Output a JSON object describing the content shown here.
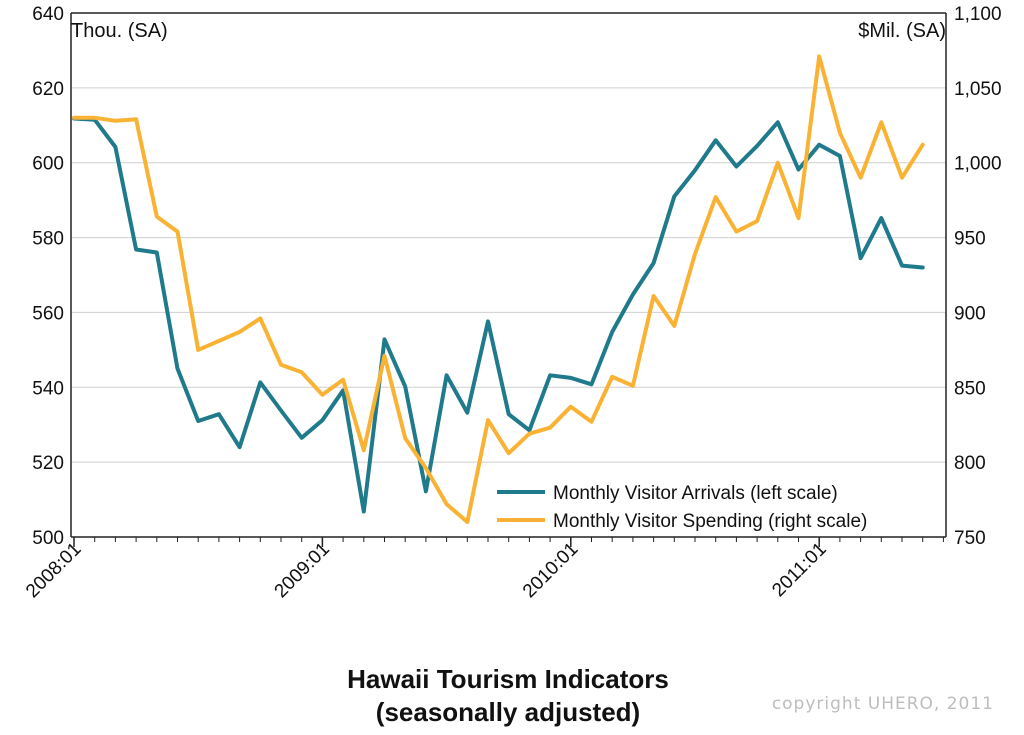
{
  "chart_data": {
    "type": "line",
    "title": "Hawaii Tourism Indicators",
    "subtitle": "(seasonally adjusted)",
    "left_axis": {
      "unit_label": "Thou. (SA)",
      "range": [
        500,
        640
      ],
      "ticks": [
        "500",
        "520",
        "540",
        "560",
        "580",
        "600",
        "620",
        "640"
      ]
    },
    "right_axis": {
      "unit_label": "$Mil. (SA)",
      "range": [
        750,
        1100
      ],
      "ticks": [
        "750",
        "800",
        "850",
        "900",
        "950",
        "1,000",
        "1,050",
        "1,100"
      ]
    },
    "x": {
      "start": "2008:01",
      "ticks": [
        {
          "label": "2008:01",
          "index": 0
        },
        {
          "label": "2009:01",
          "index": 12
        },
        {
          "label": "2010:01",
          "index": 24
        },
        {
          "label": "2011:01",
          "index": 36
        }
      ]
    },
    "grid": true,
    "legend_position": "bottom-right",
    "series": [
      {
        "name": "Monthly Visitor Arrivals (left scale)",
        "axis": "left",
        "color": "#1f7a8c",
        "values": [
          611.8,
          611.5,
          604.2,
          576.8,
          576.0,
          545.0,
          531.0,
          532.8,
          524.0,
          541.3,
          533.8,
          526.5,
          531.2,
          539.2,
          506.8,
          552.8,
          540.2,
          512.2,
          543.2,
          533.2,
          557.6,
          532.8,
          528.5,
          543.2,
          542.5,
          540.8,
          554.8,
          564.8,
          573.2,
          591.0,
          598.0,
          606.0,
          599.0,
          604.5,
          610.8,
          598.2,
          604.8,
          601.8,
          574.5,
          585.2,
          572.5,
          572.0
        ]
      },
      {
        "name": "Monthly Visitor Spending (right scale)",
        "axis": "right",
        "color": "#f9b233",
        "values": [
          1030,
          1030,
          1028,
          1029,
          964,
          954,
          875,
          881,
          887,
          896,
          865,
          860,
          845,
          855,
          808,
          871,
          816,
          796,
          772,
          760,
          828,
          806,
          819,
          823,
          837,
          827,
          857,
          851,
          911,
          891,
          939,
          977,
          954,
          961,
          1000,
          963,
          1071,
          1020,
          990,
          1027,
          990,
          1012
        ]
      }
    ]
  },
  "footer": {
    "copyright": "copyright UHERO, 2011"
  }
}
